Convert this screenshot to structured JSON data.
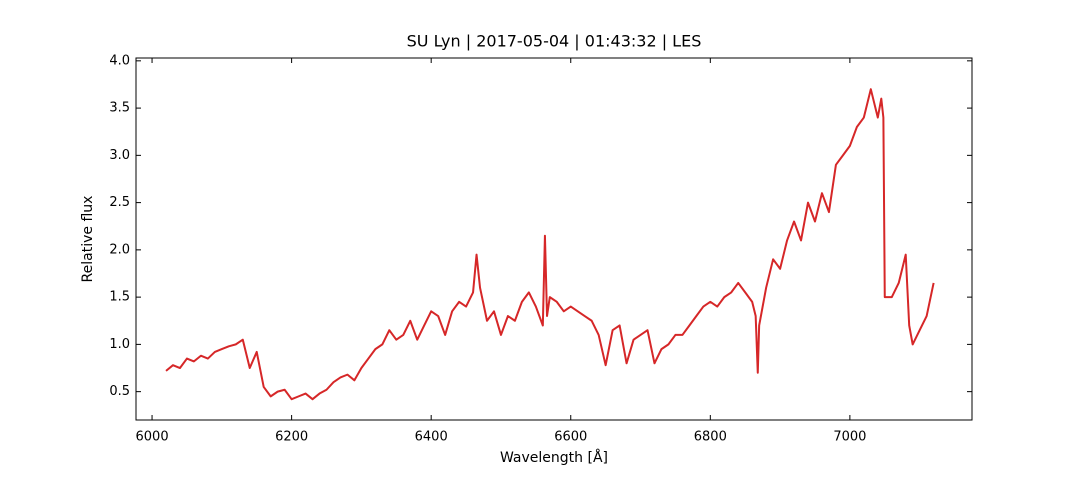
{
  "chart_data": {
    "type": "line",
    "title": "SU Lyn | 2017-05-04 | 01:43:32 | LES",
    "x_label": "Wavelength [Å]",
    "y_label": "Relative flux",
    "xlim": [
      5977,
      7175
    ],
    "ylim": [
      0.2,
      4.03
    ],
    "xticks": [
      6000,
      6200,
      6400,
      6600,
      6800,
      7000
    ],
    "yticks": [
      {
        "value": 0.5,
        "label": "0.5"
      },
      {
        "value": 1,
        "label": "1.0"
      },
      {
        "value": 1.5,
        "label": "1.5"
      },
      {
        "value": 2,
        "label": "2.0"
      },
      {
        "value": 2.5,
        "label": "2.5"
      },
      {
        "value": 3,
        "label": "3.0"
      },
      {
        "value": 3.5,
        "label": "3.5"
      },
      {
        "value": 4,
        "label": "4.0"
      }
    ],
    "grid": false,
    "x": [
      6020,
      6030,
      6040,
      6050,
      6060,
      6070,
      6080,
      6090,
      6100,
      6110,
      6120,
      6130,
      6140,
      6150,
      6160,
      6170,
      6180,
      6190,
      6200,
      6210,
      6220,
      6230,
      6240,
      6250,
      6260,
      6270,
      6280,
      6290,
      6300,
      6310,
      6320,
      6330,
      6340,
      6350,
      6360,
      6370,
      6380,
      6390,
      6400,
      6410,
      6420,
      6430,
      6440,
      6450,
      6460,
      6465,
      6470,
      6480,
      6490,
      6500,
      6510,
      6520,
      6530,
      6540,
      6550,
      6560,
      6563,
      6566,
      6570,
      6580,
      6590,
      6600,
      6610,
      6620,
      6630,
      6640,
      6650,
      6660,
      6670,
      6680,
      6690,
      6700,
      6710,
      6720,
      6730,
      6740,
      6750,
      6760,
      6770,
      6780,
      6790,
      6800,
      6810,
      6820,
      6830,
      6840,
      6850,
      6860,
      6865,
      6868,
      6870,
      6880,
      6890,
      6900,
      6910,
      6920,
      6930,
      6940,
      6950,
      6960,
      6970,
      6980,
      6990,
      7000,
      7010,
      7020,
      7030,
      7040,
      7045,
      7048,
      7050,
      7060,
      7070,
      7080,
      7085,
      7090,
      7100,
      7110,
      7120
    ],
    "series": [
      {
        "name": "flux",
        "color": "#d62728",
        "values": [
          0.72,
          0.78,
          0.75,
          0.85,
          0.82,
          0.88,
          0.85,
          0.92,
          0.95,
          0.98,
          1.0,
          1.05,
          0.75,
          0.92,
          0.55,
          0.45,
          0.5,
          0.52,
          0.42,
          0.45,
          0.48,
          0.42,
          0.48,
          0.52,
          0.6,
          0.65,
          0.68,
          0.62,
          0.75,
          0.85,
          0.95,
          1.0,
          1.15,
          1.05,
          1.1,
          1.25,
          1.05,
          1.2,
          1.35,
          1.3,
          1.1,
          1.35,
          1.45,
          1.4,
          1.55,
          1.95,
          1.6,
          1.25,
          1.35,
          1.1,
          1.3,
          1.25,
          1.45,
          1.55,
          1.4,
          1.2,
          2.15,
          1.3,
          1.5,
          1.45,
          1.35,
          1.4,
          1.35,
          1.3,
          1.25,
          1.1,
          0.78,
          1.15,
          1.2,
          0.8,
          1.05,
          1.1,
          1.15,
          0.8,
          0.95,
          1.0,
          1.1,
          1.1,
          1.2,
          1.3,
          1.4,
          1.45,
          1.4,
          1.5,
          1.55,
          1.65,
          1.55,
          1.45,
          1.3,
          0.7,
          1.2,
          1.6,
          1.9,
          1.8,
          2.1,
          2.3,
          2.1,
          2.5,
          2.3,
          2.6,
          2.4,
          2.9,
          3.0,
          3.1,
          3.3,
          3.4,
          3.7,
          3.4,
          3.6,
          3.4,
          1.5,
          1.5,
          1.65,
          1.95,
          1.2,
          1.0,
          1.15,
          1.3,
          1.65
        ]
      }
    ]
  }
}
